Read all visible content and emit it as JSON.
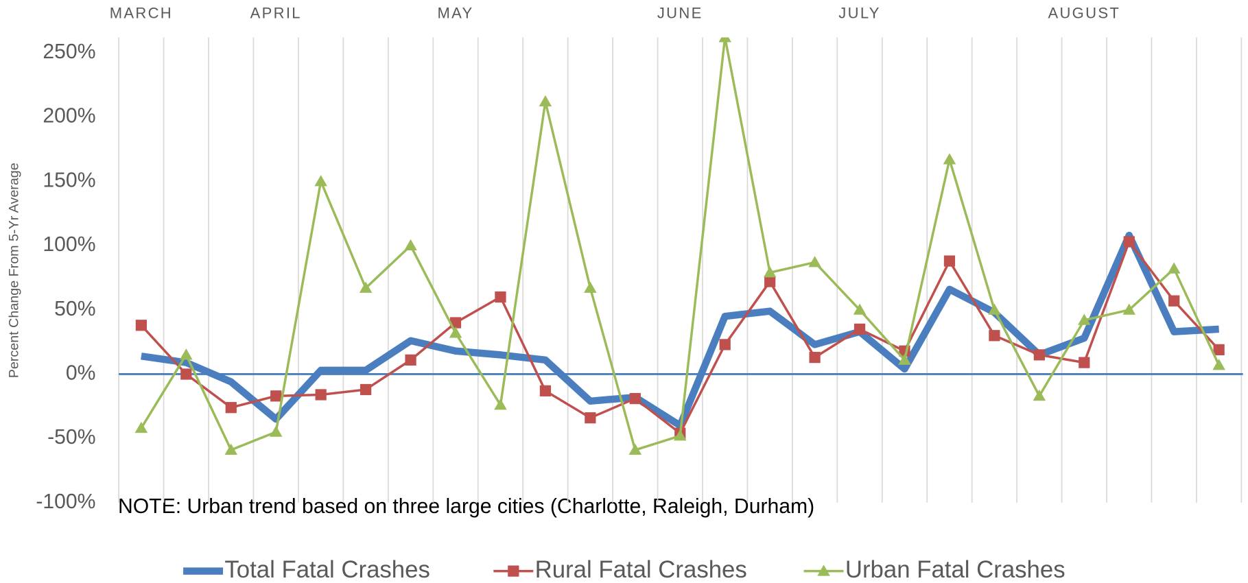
{
  "chart_data": {
    "type": "line",
    "y_axis_label": "Percent Change From  5-Yr Average",
    "annotation": "NOTE: Urban trend based on three large cities (Charlotte, Raleigh, Durham)",
    "categories": [
      "MARCH",
      null,
      null,
      "APRIL",
      null,
      null,
      null,
      "MAY",
      null,
      null,
      null,
      null,
      "JUNE",
      null,
      null,
      null,
      "JULY",
      null,
      null,
      null,
      null,
      "AUGUST",
      null,
      null,
      null
    ],
    "ylim": [
      -100,
      262
    ],
    "yticks": [
      {
        "value": -100,
        "label": "-100%"
      },
      {
        "value": -50,
        "label": "-50%"
      },
      {
        "value": 0,
        "label": "0%"
      },
      {
        "value": 50,
        "label": "50%"
      },
      {
        "value": 100,
        "label": "100%"
      },
      {
        "value": 150,
        "label": "150%"
      },
      {
        "value": 200,
        "label": "200%"
      },
      {
        "value": 250,
        "label": "250%"
      }
    ],
    "legend": "bottom",
    "series": [
      {
        "name": "Total Fatal Crashes",
        "color": "#4a7ebf",
        "values": [
          14,
          9,
          -6,
          -35,
          3,
          3,
          26,
          18,
          15,
          11,
          -21,
          -18,
          -40,
          45,
          49,
          23,
          33,
          4,
          66,
          48,
          15,
          28,
          108,
          33,
          35
        ]
      },
      {
        "name": "Rural Fatal Crashes",
        "color": "#c0504d",
        "values": [
          38,
          0,
          -26,
          -17,
          -16,
          -12,
          11,
          40,
          60,
          -13,
          -34,
          -19,
          -46,
          23,
          72,
          13,
          35,
          18,
          88,
          30,
          15,
          9,
          103,
          57,
          19
        ]
      },
      {
        "name": "Urban Fatal Crashes",
        "color": "#9bbb59",
        "values": [
          -42,
          15,
          -59,
          -45,
          150,
          67,
          100,
          32,
          -24,
          212,
          67,
          -59,
          -48,
          262,
          79,
          87,
          50,
          11,
          167,
          50,
          -17,
          42,
          50,
          82,
          7
        ]
      }
    ]
  }
}
